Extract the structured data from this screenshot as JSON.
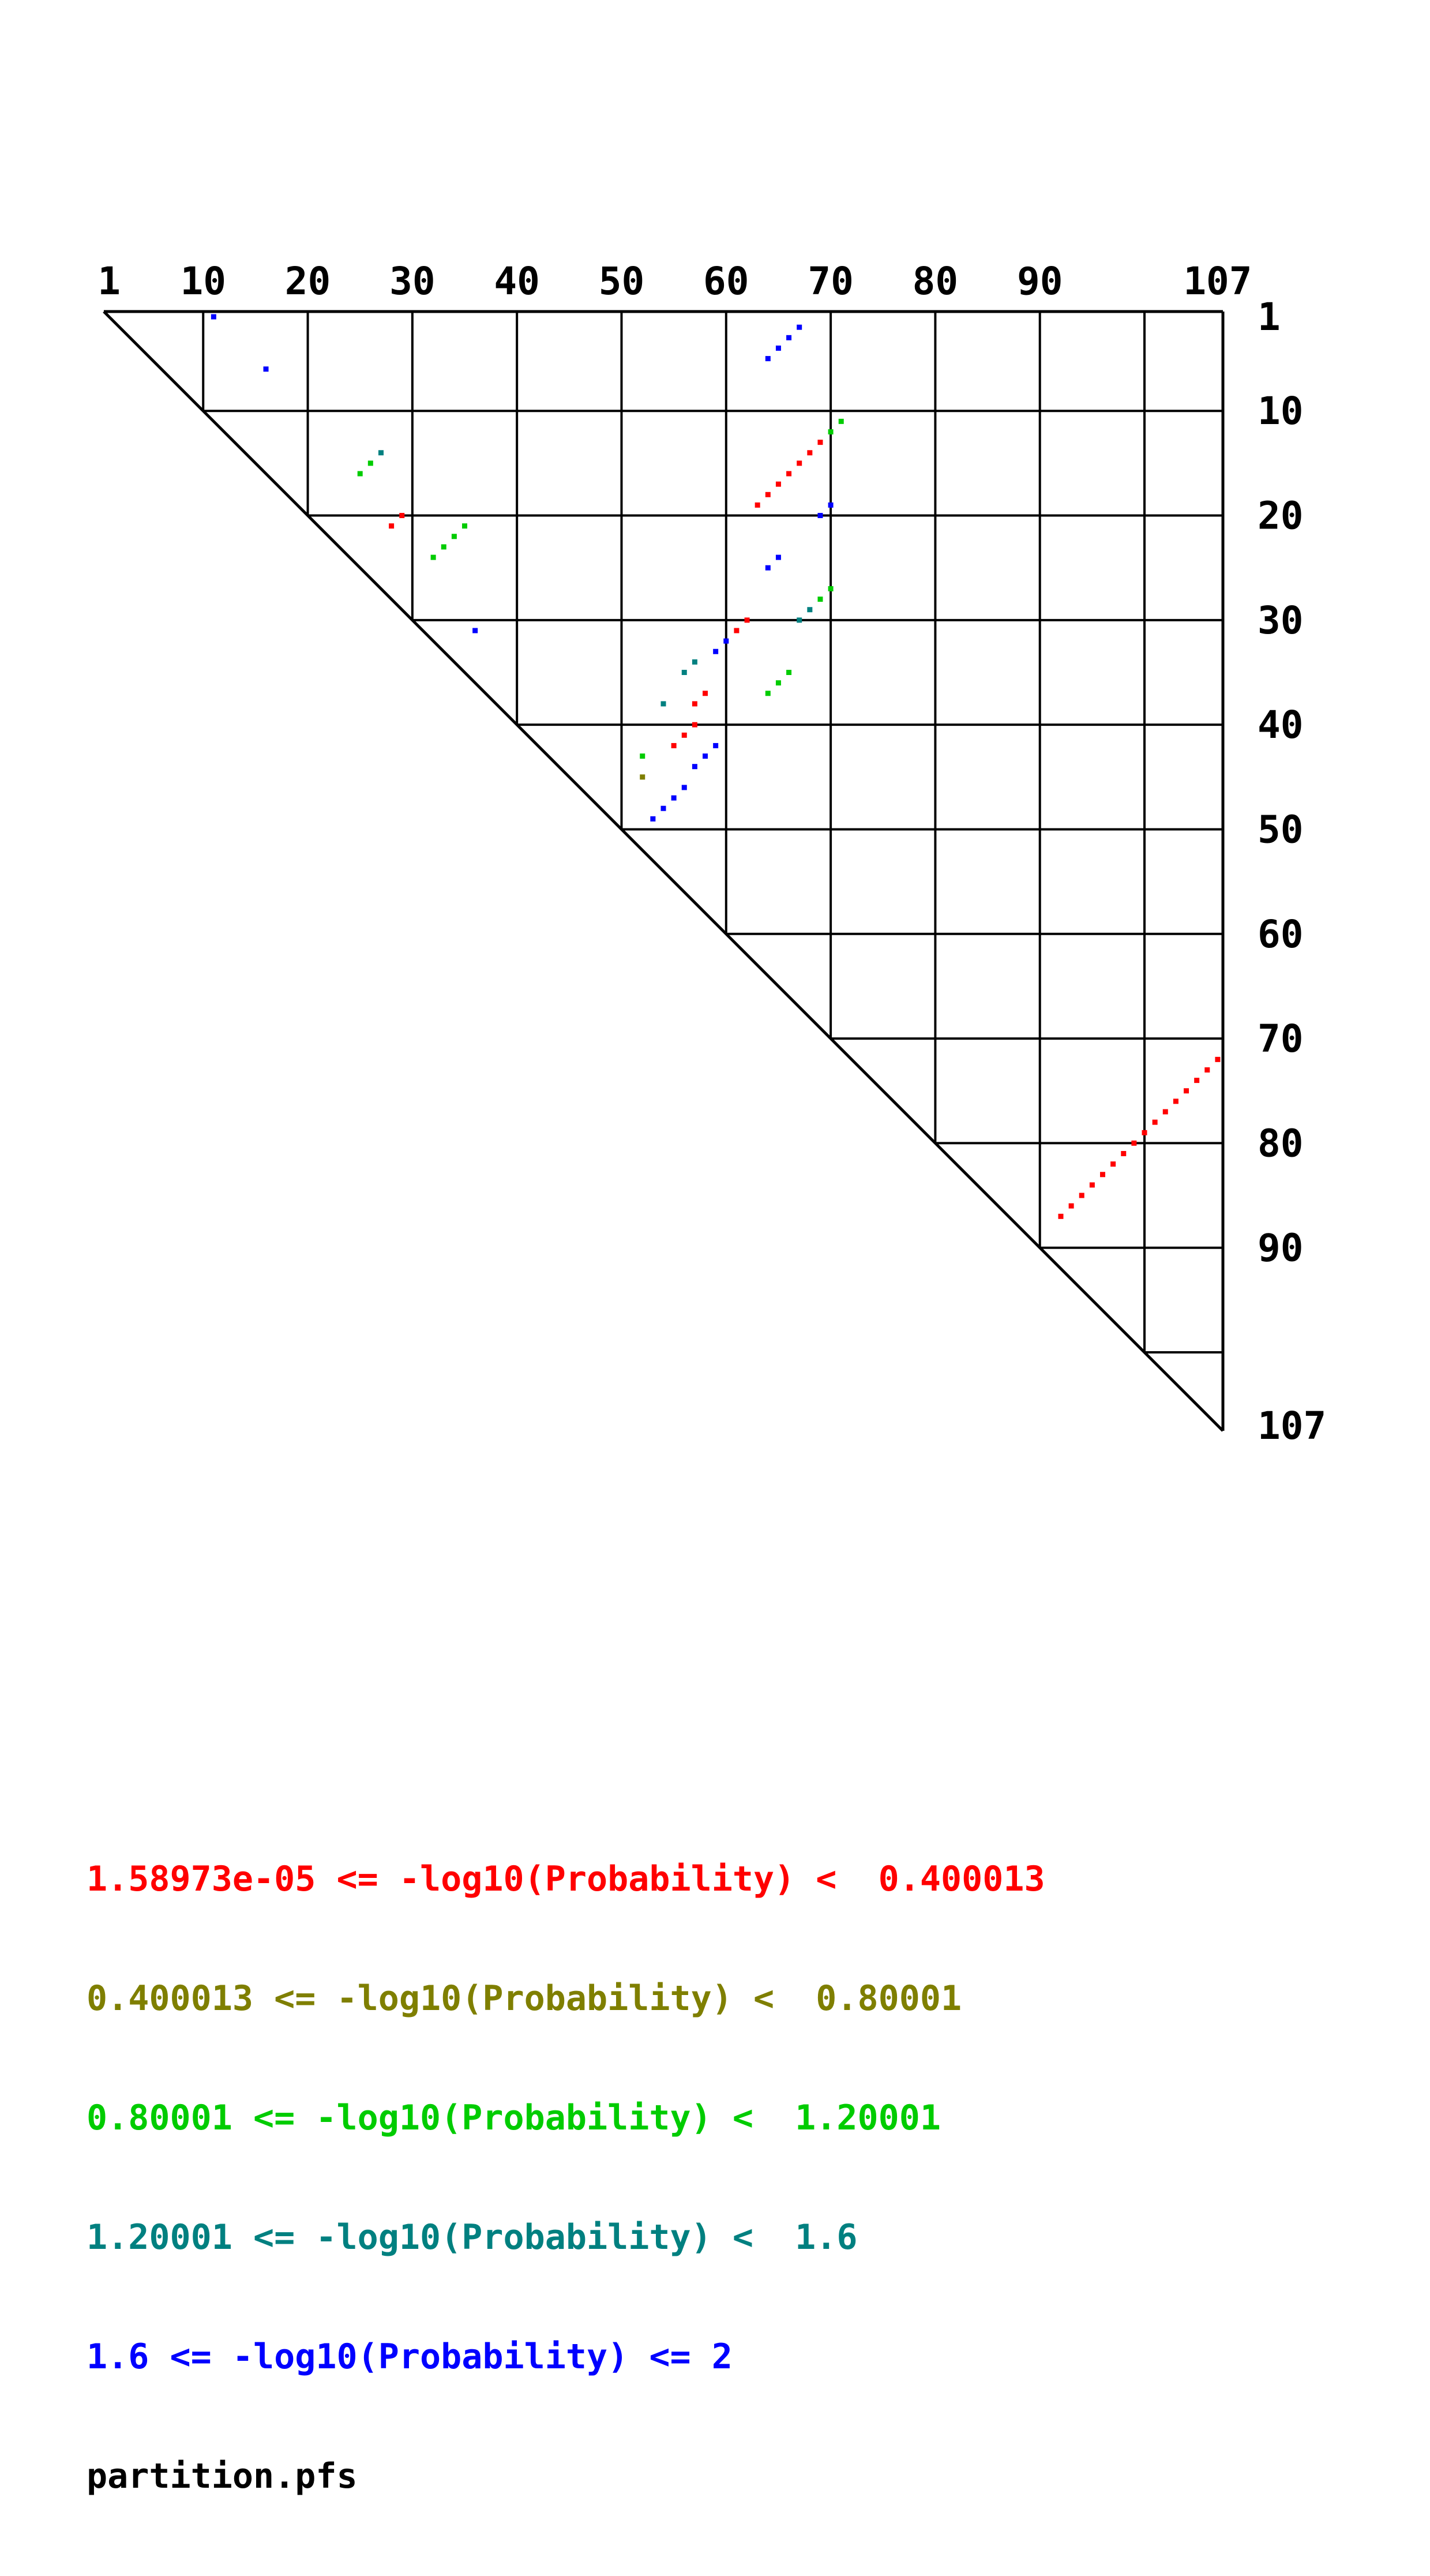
{
  "chart_data": {
    "type": "scatter",
    "subtype": "triangular-base-pair-probability-dotplot",
    "title": "",
    "n": 107,
    "grid_interval": 10,
    "x_ticks": [
      1,
      10,
      20,
      30,
      40,
      50,
      60,
      70,
      80,
      90,
      107
    ],
    "y_ticks": [
      1,
      10,
      20,
      30,
      40,
      50,
      60,
      70,
      80,
      90,
      107
    ],
    "axis_range": [
      1,
      107
    ],
    "footer": "partition.pfs",
    "series": [
      {
        "class": 1,
        "color": "#ff0000",
        "label": "1.58973e-05 <= -log10(Probability) <  0.400013",
        "points": [
          [
            13,
            69
          ],
          [
            14,
            68
          ],
          [
            15,
            67
          ],
          [
            16,
            66
          ],
          [
            17,
            65
          ],
          [
            18,
            64
          ],
          [
            19,
            63
          ],
          [
            20,
            29
          ],
          [
            21,
            28
          ],
          [
            30,
            62
          ],
          [
            31,
            61
          ],
          [
            37,
            58
          ],
          [
            38,
            57
          ],
          [
            40,
            57
          ],
          [
            41,
            56
          ],
          [
            42,
            55
          ],
          [
            72,
            107
          ],
          [
            73,
            106
          ],
          [
            74,
            105
          ],
          [
            75,
            104
          ],
          [
            76,
            103
          ],
          [
            77,
            102
          ],
          [
            78,
            101
          ],
          [
            79,
            100
          ],
          [
            80,
            99
          ],
          [
            81,
            98
          ],
          [
            82,
            97
          ],
          [
            83,
            96
          ],
          [
            84,
            95
          ],
          [
            85,
            94
          ],
          [
            86,
            93
          ],
          [
            87,
            92
          ]
        ]
      },
      {
        "class": 2,
        "color": "#7f7f00",
        "label": "0.400013 <= -log10(Probability) <  0.80001",
        "points": [
          [
            45,
            52
          ]
        ]
      },
      {
        "class": 3,
        "color": "#00cc00",
        "label": "0.80001 <= -log10(Probability) <  1.20001",
        "points": [
          [
            11,
            71
          ],
          [
            12,
            70
          ],
          [
            15,
            26
          ],
          [
            16,
            25
          ],
          [
            21,
            35
          ],
          [
            22,
            34
          ],
          [
            23,
            33
          ],
          [
            24,
            32
          ],
          [
            27,
            70
          ],
          [
            28,
            69
          ],
          [
            35,
            66
          ],
          [
            36,
            65
          ],
          [
            37,
            64
          ],
          [
            43,
            52
          ]
        ]
      },
      {
        "class": 4,
        "color": "#008080",
        "label": "1.20001 <= -log10(Probability) <  1.6",
        "points": [
          [
            14,
            27
          ],
          [
            29,
            68
          ],
          [
            30,
            67
          ],
          [
            34,
            57
          ],
          [
            35,
            56
          ],
          [
            38,
            54
          ]
        ]
      },
      {
        "class": 5,
        "color": "#0000ff",
        "label": "1.6 <= -log10(Probability) <= 2",
        "points": [
          [
            1,
            11
          ],
          [
            6,
            16
          ],
          [
            2,
            67
          ],
          [
            3,
            66
          ],
          [
            4,
            65
          ],
          [
            5,
            64
          ],
          [
            19,
            70
          ],
          [
            20,
            69
          ],
          [
            24,
            65
          ],
          [
            25,
            64
          ],
          [
            31,
            36
          ],
          [
            32,
            60
          ],
          [
            33,
            59
          ],
          [
            42,
            59
          ],
          [
            43,
            58
          ],
          [
            44,
            57
          ],
          [
            46,
            56
          ],
          [
            47,
            55
          ],
          [
            48,
            54
          ],
          [
            49,
            53
          ]
        ]
      }
    ]
  }
}
